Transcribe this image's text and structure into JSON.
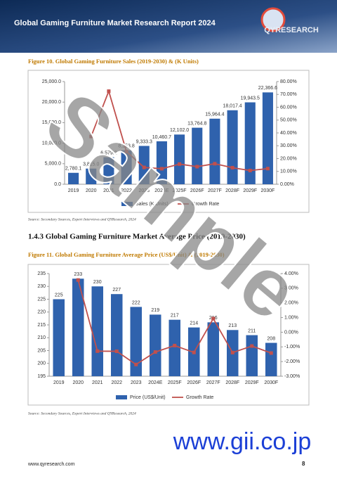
{
  "header": {
    "title": "Global Gaming Furniture Market Research Report 2024",
    "logo": "QYRESEARCH"
  },
  "figures": [
    {
      "caption": "Figure 10.   Global Gaming Furniture Sales (2019-2030) & (K Units)",
      "source": "Source: Secondary Sources, Expert Interviews and QYResearch, 2024"
    },
    {
      "caption": "Figure 11.   Global Gaming Furniture Average Price (US$/Unit) & (2019-2030)",
      "source": "Source: Secondary Sources, Expert Interviews and QYResearch, 2024"
    }
  ],
  "section_heading": "1.4.3  Global Gaming Furniture Market Average Price (2019-2030)",
  "watermark": "Sample",
  "site": "www.gii.co.jp",
  "footer": {
    "url": "www.qyresearch.com",
    "page": "8"
  },
  "chart_data": [
    {
      "type": "bar",
      "categories": [
        "2019",
        "2020",
        "2021",
        "2022",
        "2023",
        "2024E",
        "2025F",
        "2026F",
        "2027F",
        "2028F",
        "2029F",
        "2030F"
      ],
      "series": [
        {
          "name": "Sales (K Units)",
          "color": "#2f62ad",
          "values": [
            2780.1,
            3815.0,
            6579.2,
            8253.8,
            9333.3,
            10460.7,
            12102.0,
            13764.8,
            15964.4,
            18017.4,
            19943.5,
            22366.6
          ],
          "value_labels": [
            "2,780.1",
            "3,815.0",
            "6,579.2",
            "8,253.8",
            "9,333.3",
            "10,460.7",
            "12,102.0",
            "13,764.8",
            "15,964.4",
            "18,017.4",
            "19,943.5",
            "22,366.6"
          ]
        },
        {
          "name": "Growth Rate",
          "color": "#c0504d",
          "type": "line",
          "axis": "y2",
          "values": [
            null,
            37.2,
            72.5,
            25.5,
            13.1,
            12.1,
            15.7,
            13.7,
            16.0,
            12.9,
            10.7,
            12.2
          ]
        }
      ],
      "ylim": [
        0,
        25000
      ],
      "yticks": [
        {
          "value": 0,
          "label": "0.0"
        },
        {
          "value": 5000,
          "label": "5,000.0"
        },
        {
          "value": 10000,
          "label": "10,000.0"
        },
        {
          "value": 15000,
          "label": "15,000.0"
        },
        {
          "value": 20000,
          "label": "20,000.0"
        },
        {
          "value": 25000,
          "label": "25,000.0"
        }
      ],
      "y2lim": [
        0,
        80
      ],
      "y2ticks": [
        {
          "value": 0,
          "label": "0.00%"
        },
        {
          "value": 10,
          "label": "10.00%"
        },
        {
          "value": 20,
          "label": "20.00%"
        },
        {
          "value": 30,
          "label": "30.00%"
        },
        {
          "value": 40,
          "label": "40.00%"
        },
        {
          "value": 50,
          "label": "50.00%"
        },
        {
          "value": 60,
          "label": "60.00%"
        },
        {
          "value": 70,
          "label": "70.00%"
        },
        {
          "value": 80,
          "label": "80.00%"
        }
      ]
    },
    {
      "type": "bar",
      "categories": [
        "2019",
        "2020",
        "2021",
        "2022",
        "2023",
        "2024E",
        "2025F",
        "2026F",
        "2027F",
        "2028F",
        "2029F",
        "2030F"
      ],
      "series": [
        {
          "name": "Price (US$/Unit)",
          "color": "#2f62ad",
          "values": [
            225,
            233,
            230,
            227,
            222,
            219,
            217,
            214,
            216,
            213,
            211,
            208
          ]
        },
        {
          "name": "Growth Rate",
          "color": "#c0504d",
          "type": "line",
          "axis": "y2",
          "values": [
            null,
            3.56,
            -1.29,
            -1.3,
            -2.2,
            -1.35,
            -0.91,
            -1.38,
            0.93,
            -1.39,
            -0.94,
            -1.42
          ]
        }
      ],
      "ylim": [
        195,
        235
      ],
      "yticks": [
        195,
        200,
        205,
        210,
        215,
        220,
        225,
        230,
        235
      ],
      "y2lim": [
        -3,
        4
      ],
      "y2ticks": [
        {
          "value": -3,
          "label": "-3.00%"
        },
        {
          "value": -2,
          "label": "-2.00%"
        },
        {
          "value": -1,
          "label": "-1.00%"
        },
        {
          "value": 0,
          "label": "0.00%"
        },
        {
          "value": 1,
          "label": "1.00%"
        },
        {
          "value": 2,
          "label": "2.00%"
        },
        {
          "value": 3,
          "label": "3.00%"
        },
        {
          "value": 4,
          "label": "4.00%"
        }
      ]
    }
  ]
}
